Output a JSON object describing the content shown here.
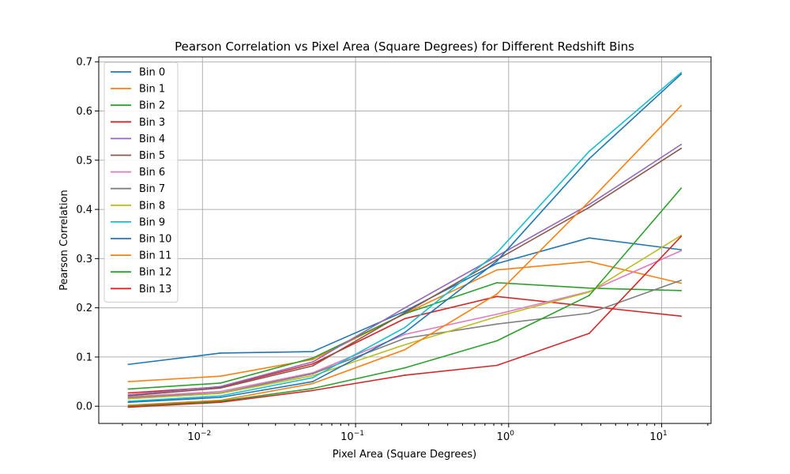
{
  "chart_data": {
    "type": "line",
    "title": "Pearson Correlation vs Pixel Area (Square Degrees) for Different Redshift Bins",
    "xlabel": "Pixel Area (Square Degrees)",
    "ylabel": "Pearson Correlation",
    "xscale": "log",
    "xlim": [
      0.0021,
      21
    ],
    "ylim": [
      -0.035,
      0.71
    ],
    "grid": true,
    "legend_position": "top-left",
    "x": [
      0.00328,
      0.0131,
      0.0525,
      0.21,
      0.839,
      3.36,
      13.4
    ],
    "xticks": [
      {
        "value": 0.01,
        "base": "10",
        "exp": "−2"
      },
      {
        "value": 0.1,
        "base": "10",
        "exp": "−1"
      },
      {
        "value": 1,
        "base": "10",
        "exp": "0"
      },
      {
        "value": 10,
        "base": "10",
        "exp": "1"
      }
    ],
    "yticks": [
      {
        "value": 0.0,
        "label": "0.0"
      },
      {
        "value": 0.1,
        "label": "0.1"
      },
      {
        "value": 0.2,
        "label": "0.2"
      },
      {
        "value": 0.3,
        "label": "0.3"
      },
      {
        "value": 0.4,
        "label": "0.4"
      },
      {
        "value": 0.5,
        "label": "0.5"
      },
      {
        "value": 0.6,
        "label": "0.6"
      },
      {
        "value": 0.7,
        "label": "0.7"
      }
    ],
    "series": [
      {
        "name": "Bin 0",
        "color": "#1f77b4",
        "values": [
          0.085,
          0.108,
          0.111,
          0.193,
          0.29,
          0.342,
          0.318
        ]
      },
      {
        "name": "Bin 1",
        "color": "#ff7f0e",
        "values": [
          0.05,
          0.061,
          0.095,
          0.188,
          0.277,
          0.294,
          0.25
        ]
      },
      {
        "name": "Bin 2",
        "color": "#2ca02c",
        "values": [
          0.035,
          0.047,
          0.098,
          0.188,
          0.251,
          0.24,
          0.235
        ]
      },
      {
        "name": "Bin 3",
        "color": "#d62728",
        "values": [
          0.027,
          0.039,
          0.086,
          0.178,
          0.223,
          0.203,
          0.183
        ]
      },
      {
        "name": "Bin 4",
        "color": "#9467bd",
        "values": [
          0.023,
          0.04,
          0.09,
          0.2,
          0.305,
          0.41,
          0.532
        ]
      },
      {
        "name": "Bin 5",
        "color": "#8c564b",
        "values": [
          0.021,
          0.037,
          0.082,
          0.19,
          0.298,
          0.404,
          0.524
        ]
      },
      {
        "name": "Bin 6",
        "color": "#e377c2",
        "values": [
          0.019,
          0.03,
          0.068,
          0.146,
          0.187,
          0.233,
          0.316
        ]
      },
      {
        "name": "Bin 7",
        "color": "#7f7f7f",
        "values": [
          0.017,
          0.027,
          0.066,
          0.138,
          0.167,
          0.189,
          0.256
        ]
      },
      {
        "name": "Bin 8",
        "color": "#bcbd22",
        "values": [
          0.015,
          0.026,
          0.062,
          0.125,
          0.182,
          0.232,
          0.347
        ]
      },
      {
        "name": "Bin 9",
        "color": "#17becf",
        "values": [
          0.01,
          0.021,
          0.058,
          0.16,
          0.312,
          0.518,
          0.678
        ]
      },
      {
        "name": "Bin 10",
        "color": "#1f77b4",
        "values": [
          0.008,
          0.018,
          0.05,
          0.15,
          0.295,
          0.503,
          0.675
        ]
      },
      {
        "name": "Bin 11",
        "color": "#ff7f0e",
        "values": [
          0.002,
          0.012,
          0.046,
          0.115,
          0.228,
          0.416,
          0.611
        ]
      },
      {
        "name": "Bin 12",
        "color": "#2ca02c",
        "values": [
          0.0,
          0.01,
          0.036,
          0.078,
          0.133,
          0.225,
          0.443
        ]
      },
      {
        "name": "Bin 13",
        "color": "#d62728",
        "values": [
          -0.002,
          0.008,
          0.032,
          0.063,
          0.083,
          0.148,
          0.345
        ]
      }
    ]
  }
}
